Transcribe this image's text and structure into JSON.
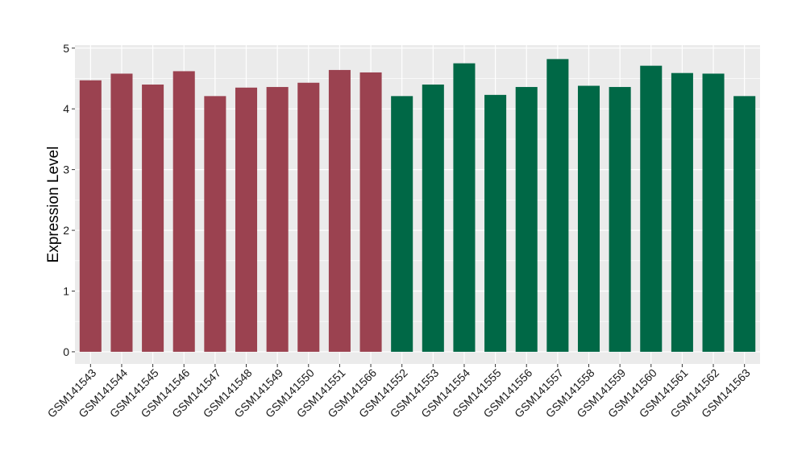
{
  "chart_data": {
    "type": "bar",
    "title": "",
    "xlabel": "",
    "ylabel": "Expression Level",
    "ylim": [
      -0.2,
      5.05
    ],
    "yticks": [
      0,
      1,
      2,
      3,
      4,
      5
    ],
    "grid": true,
    "legend": "none",
    "background": "#EBEBEB",
    "gridline_color": "#FFFFFF",
    "categories": [
      "GSM141543",
      "GSM141544",
      "GSM141545",
      "GSM141546",
      "GSM141547",
      "GSM141548",
      "GSM141549",
      "GSM141550",
      "GSM141551",
      "GSM141566",
      "GSM141552",
      "GSM141553",
      "GSM141554",
      "GSM141555",
      "GSM141556",
      "GSM141557",
      "GSM141558",
      "GSM141559",
      "GSM141560",
      "GSM141561",
      "GSM141562",
      "GSM141563"
    ],
    "values": [
      4.47,
      4.58,
      4.4,
      4.62,
      4.21,
      4.35,
      4.36,
      4.43,
      4.64,
      4.6,
      4.21,
      4.4,
      4.75,
      4.23,
      4.36,
      4.82,
      4.38,
      4.36,
      4.71,
      4.59,
      4.58,
      4.21
    ],
    "colors": [
      "#9B4250",
      "#9B4250",
      "#9B4250",
      "#9B4250",
      "#9B4250",
      "#9B4250",
      "#9B4250",
      "#9B4250",
      "#9B4250",
      "#9B4250",
      "#006846",
      "#006846",
      "#006846",
      "#006846",
      "#006846",
      "#006846",
      "#006846",
      "#006846",
      "#006846",
      "#006846",
      "#006846",
      "#006846"
    ]
  }
}
